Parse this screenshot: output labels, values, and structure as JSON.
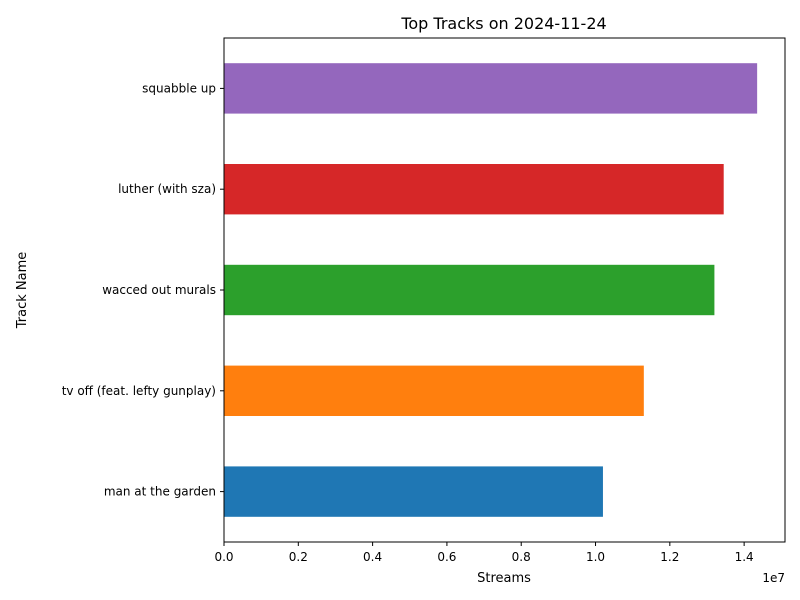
{
  "chart_data": {
    "type": "bar",
    "orientation": "horizontal",
    "title": "Top Tracks on 2024-11-24",
    "xlabel": "Streams",
    "ylabel": "Track Name",
    "x_scale_label": "1e7",
    "xlim": [
      0,
      15100000
    ],
    "x_ticks": [
      0,
      2000000,
      4000000,
      6000000,
      8000000,
      10000000,
      12000000,
      14000000
    ],
    "x_tick_labels": [
      "0.0",
      "0.2",
      "0.4",
      "0.6",
      "0.8",
      "1.0",
      "1.2",
      "1.4"
    ],
    "grid": false,
    "legend": "none",
    "bars": [
      {
        "category": "man at the garden",
        "value": 10200000,
        "color": "#1f77b4"
      },
      {
        "category": "tv off (feat. lefty gunplay)",
        "value": 11300000,
        "color": "#ff7f0e"
      },
      {
        "category": "wacced out murals",
        "value": 13200000,
        "color": "#2ca02c"
      },
      {
        "category": "luther (with sza)",
        "value": 13450000,
        "color": "#d62728"
      },
      {
        "category": "squabble up",
        "value": 14350000,
        "color": "#9467bd"
      }
    ]
  }
}
